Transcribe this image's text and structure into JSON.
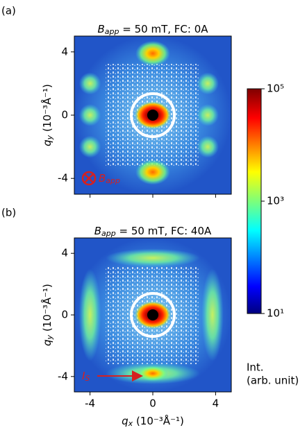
{
  "chart_data": [
    {
      "type": "heatmap",
      "panel_label": "(a)",
      "title_symbol": "B",
      "title_subscript": "app",
      "title": " = 50 mT, FC: 0A",
      "xlabel_symbol": "q",
      "xlabel_subscript": "x",
      "xlabel": " (10⁻³Å⁻¹)",
      "ylabel_symbol": "q",
      "ylabel_subscript": "y",
      "ylabel": " (10⁻³Å⁻¹)",
      "xlim": [
        -5,
        5
      ],
      "ylim": [
        -5,
        5
      ],
      "xticks": [
        -4,
        0,
        4
      ],
      "yticks": [
        -4,
        0,
        4
      ],
      "show_xtick_labels": false,
      "annotation_symbol": "B",
      "annotation_subscript": "app",
      "annotation_color": "#d62020",
      "colorbar": {
        "lim": [
          10,
          100000
        ],
        "log": true,
        "colormap": "jet",
        "ticks": [
          {
            "value": 100000,
            "label": "10⁵"
          },
          {
            "value": 1000,
            "label": "10³"
          },
          {
            "value": 10,
            "label": "10¹"
          }
        ],
        "label": [
          "Int.",
          "(arb. unit)"
        ]
      }
    },
    {
      "type": "heatmap",
      "panel_label": "(b)",
      "title_symbol": "B",
      "title_subscript": "app",
      "title": " = 50 mT, FC: 40A",
      "xlabel_symbol": "q",
      "xlabel_subscript": "x",
      "xlabel": " (10⁻³Å⁻¹)",
      "ylabel_symbol": "q",
      "ylabel_subscript": "y",
      "ylabel": " (10⁻³Å⁻¹)",
      "xlim": [
        -5,
        5
      ],
      "ylim": [
        -5,
        5
      ],
      "xticks": [
        -4,
        0,
        4
      ],
      "yticks": [
        -4,
        0,
        4
      ],
      "show_xtick_labels": true,
      "annotation_symbol": "I",
      "annotation_subscript": "S",
      "annotation_color": "#d62020"
    }
  ]
}
